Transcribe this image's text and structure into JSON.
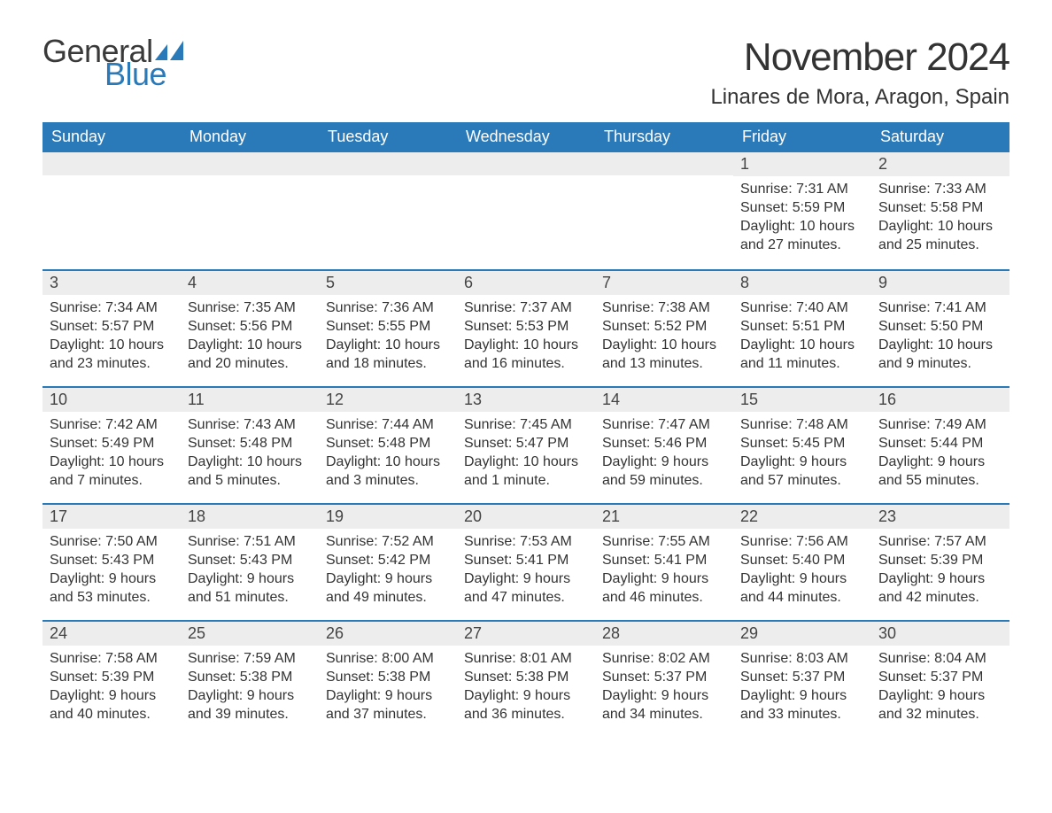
{
  "brand": {
    "name_part1": "General",
    "name_part2": "Blue",
    "color_text": "#3a3a3a",
    "color_accent": "#2a7ab9"
  },
  "header": {
    "title": "November 2024",
    "location": "Linares de Mora, Aragon, Spain"
  },
  "style": {
    "theme_color": "#2a7ab9",
    "daybar_bg": "#ededed",
    "page_bg": "#ffffff",
    "text_color": "#333333",
    "header_text_color": "#ffffff",
    "title_fontsize": 44,
    "location_fontsize": 24,
    "weekday_fontsize": 18,
    "body_fontsize": 16
  },
  "calendar": {
    "weekdays": [
      "Sunday",
      "Monday",
      "Tuesday",
      "Wednesday",
      "Thursday",
      "Friday",
      "Saturday"
    ],
    "weeks": [
      [
        null,
        null,
        null,
        null,
        null,
        {
          "day": "1",
          "sunrise": "Sunrise: 7:31 AM",
          "sunset": "Sunset: 5:59 PM",
          "daylight": "Daylight: 10 hours and 27 minutes."
        },
        {
          "day": "2",
          "sunrise": "Sunrise: 7:33 AM",
          "sunset": "Sunset: 5:58 PM",
          "daylight": "Daylight: 10 hours and 25 minutes."
        }
      ],
      [
        {
          "day": "3",
          "sunrise": "Sunrise: 7:34 AM",
          "sunset": "Sunset: 5:57 PM",
          "daylight": "Daylight: 10 hours and 23 minutes."
        },
        {
          "day": "4",
          "sunrise": "Sunrise: 7:35 AM",
          "sunset": "Sunset: 5:56 PM",
          "daylight": "Daylight: 10 hours and 20 minutes."
        },
        {
          "day": "5",
          "sunrise": "Sunrise: 7:36 AM",
          "sunset": "Sunset: 5:55 PM",
          "daylight": "Daylight: 10 hours and 18 minutes."
        },
        {
          "day": "6",
          "sunrise": "Sunrise: 7:37 AM",
          "sunset": "Sunset: 5:53 PM",
          "daylight": "Daylight: 10 hours and 16 minutes."
        },
        {
          "day": "7",
          "sunrise": "Sunrise: 7:38 AM",
          "sunset": "Sunset: 5:52 PM",
          "daylight": "Daylight: 10 hours and 13 minutes."
        },
        {
          "day": "8",
          "sunrise": "Sunrise: 7:40 AM",
          "sunset": "Sunset: 5:51 PM",
          "daylight": "Daylight: 10 hours and 11 minutes."
        },
        {
          "day": "9",
          "sunrise": "Sunrise: 7:41 AM",
          "sunset": "Sunset: 5:50 PM",
          "daylight": "Daylight: 10 hours and 9 minutes."
        }
      ],
      [
        {
          "day": "10",
          "sunrise": "Sunrise: 7:42 AM",
          "sunset": "Sunset: 5:49 PM",
          "daylight": "Daylight: 10 hours and 7 minutes."
        },
        {
          "day": "11",
          "sunrise": "Sunrise: 7:43 AM",
          "sunset": "Sunset: 5:48 PM",
          "daylight": "Daylight: 10 hours and 5 minutes."
        },
        {
          "day": "12",
          "sunrise": "Sunrise: 7:44 AM",
          "sunset": "Sunset: 5:48 PM",
          "daylight": "Daylight: 10 hours and 3 minutes."
        },
        {
          "day": "13",
          "sunrise": "Sunrise: 7:45 AM",
          "sunset": "Sunset: 5:47 PM",
          "daylight": "Daylight: 10 hours and 1 minute."
        },
        {
          "day": "14",
          "sunrise": "Sunrise: 7:47 AM",
          "sunset": "Sunset: 5:46 PM",
          "daylight": "Daylight: 9 hours and 59 minutes."
        },
        {
          "day": "15",
          "sunrise": "Sunrise: 7:48 AM",
          "sunset": "Sunset: 5:45 PM",
          "daylight": "Daylight: 9 hours and 57 minutes."
        },
        {
          "day": "16",
          "sunrise": "Sunrise: 7:49 AM",
          "sunset": "Sunset: 5:44 PM",
          "daylight": "Daylight: 9 hours and 55 minutes."
        }
      ],
      [
        {
          "day": "17",
          "sunrise": "Sunrise: 7:50 AM",
          "sunset": "Sunset: 5:43 PM",
          "daylight": "Daylight: 9 hours and 53 minutes."
        },
        {
          "day": "18",
          "sunrise": "Sunrise: 7:51 AM",
          "sunset": "Sunset: 5:43 PM",
          "daylight": "Daylight: 9 hours and 51 minutes."
        },
        {
          "day": "19",
          "sunrise": "Sunrise: 7:52 AM",
          "sunset": "Sunset: 5:42 PM",
          "daylight": "Daylight: 9 hours and 49 minutes."
        },
        {
          "day": "20",
          "sunrise": "Sunrise: 7:53 AM",
          "sunset": "Sunset: 5:41 PM",
          "daylight": "Daylight: 9 hours and 47 minutes."
        },
        {
          "day": "21",
          "sunrise": "Sunrise: 7:55 AM",
          "sunset": "Sunset: 5:41 PM",
          "daylight": "Daylight: 9 hours and 46 minutes."
        },
        {
          "day": "22",
          "sunrise": "Sunrise: 7:56 AM",
          "sunset": "Sunset: 5:40 PM",
          "daylight": "Daylight: 9 hours and 44 minutes."
        },
        {
          "day": "23",
          "sunrise": "Sunrise: 7:57 AM",
          "sunset": "Sunset: 5:39 PM",
          "daylight": "Daylight: 9 hours and 42 minutes."
        }
      ],
      [
        {
          "day": "24",
          "sunrise": "Sunrise: 7:58 AM",
          "sunset": "Sunset: 5:39 PM",
          "daylight": "Daylight: 9 hours and 40 minutes."
        },
        {
          "day": "25",
          "sunrise": "Sunrise: 7:59 AM",
          "sunset": "Sunset: 5:38 PM",
          "daylight": "Daylight: 9 hours and 39 minutes."
        },
        {
          "day": "26",
          "sunrise": "Sunrise: 8:00 AM",
          "sunset": "Sunset: 5:38 PM",
          "daylight": "Daylight: 9 hours and 37 minutes."
        },
        {
          "day": "27",
          "sunrise": "Sunrise: 8:01 AM",
          "sunset": "Sunset: 5:38 PM",
          "daylight": "Daylight: 9 hours and 36 minutes."
        },
        {
          "day": "28",
          "sunrise": "Sunrise: 8:02 AM",
          "sunset": "Sunset: 5:37 PM",
          "daylight": "Daylight: 9 hours and 34 minutes."
        },
        {
          "day": "29",
          "sunrise": "Sunrise: 8:03 AM",
          "sunset": "Sunset: 5:37 PM",
          "daylight": "Daylight: 9 hours and 33 minutes."
        },
        {
          "day": "30",
          "sunrise": "Sunrise: 8:04 AM",
          "sunset": "Sunset: 5:37 PM",
          "daylight": "Daylight: 9 hours and 32 minutes."
        }
      ]
    ]
  }
}
